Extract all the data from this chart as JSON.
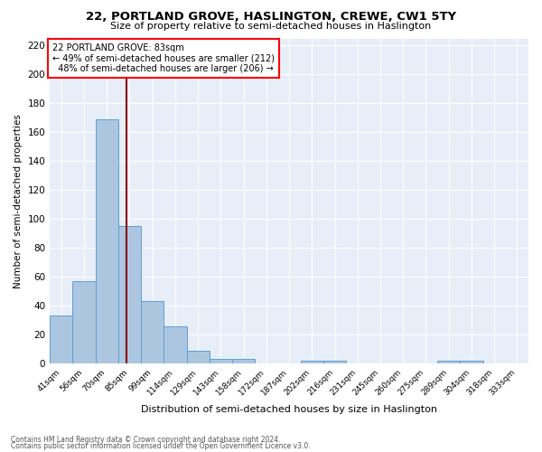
{
  "title_line1": "22, PORTLAND GROVE, HASLINGTON, CREWE, CW1 5TY",
  "title_line2": "Size of property relative to semi-detached houses in Haslington",
  "xlabel": "Distribution of semi-detached houses by size in Haslington",
  "ylabel": "Number of semi-detached properties",
  "footnote1": "Contains HM Land Registry data © Crown copyright and database right 2024.",
  "footnote2": "Contains public sector information licensed under the Open Government Licence v3.0.",
  "bar_labels": [
    "41sqm",
    "56sqm",
    "70sqm",
    "85sqm",
    "99sqm",
    "114sqm",
    "129sqm",
    "143sqm",
    "158sqm",
    "172sqm",
    "187sqm",
    "202sqm",
    "216sqm",
    "231sqm",
    "245sqm",
    "260sqm",
    "275sqm",
    "289sqm",
    "304sqm",
    "318sqm",
    "333sqm"
  ],
  "bar_values": [
    33,
    57,
    169,
    95,
    43,
    26,
    9,
    3,
    3,
    0,
    0,
    2,
    2,
    0,
    0,
    0,
    0,
    2,
    2,
    0,
    0
  ],
  "bar_color": "#adc6e0",
  "bar_edge_color": "#5a9fd4",
  "fig_facecolor": "#ffffff",
  "background_color": "#e8eef8",
  "grid_color": "#ffffff",
  "property_label": "22 PORTLAND GROVE: 83sqm",
  "pct_smaller": 49,
  "n_smaller": 212,
  "pct_larger": 48,
  "n_larger": 206,
  "vline_x_index": 2.87,
  "ylim": [
    0,
    225
  ],
  "yticks": [
    0,
    20,
    40,
    60,
    80,
    100,
    120,
    140,
    160,
    180,
    200,
    220
  ]
}
